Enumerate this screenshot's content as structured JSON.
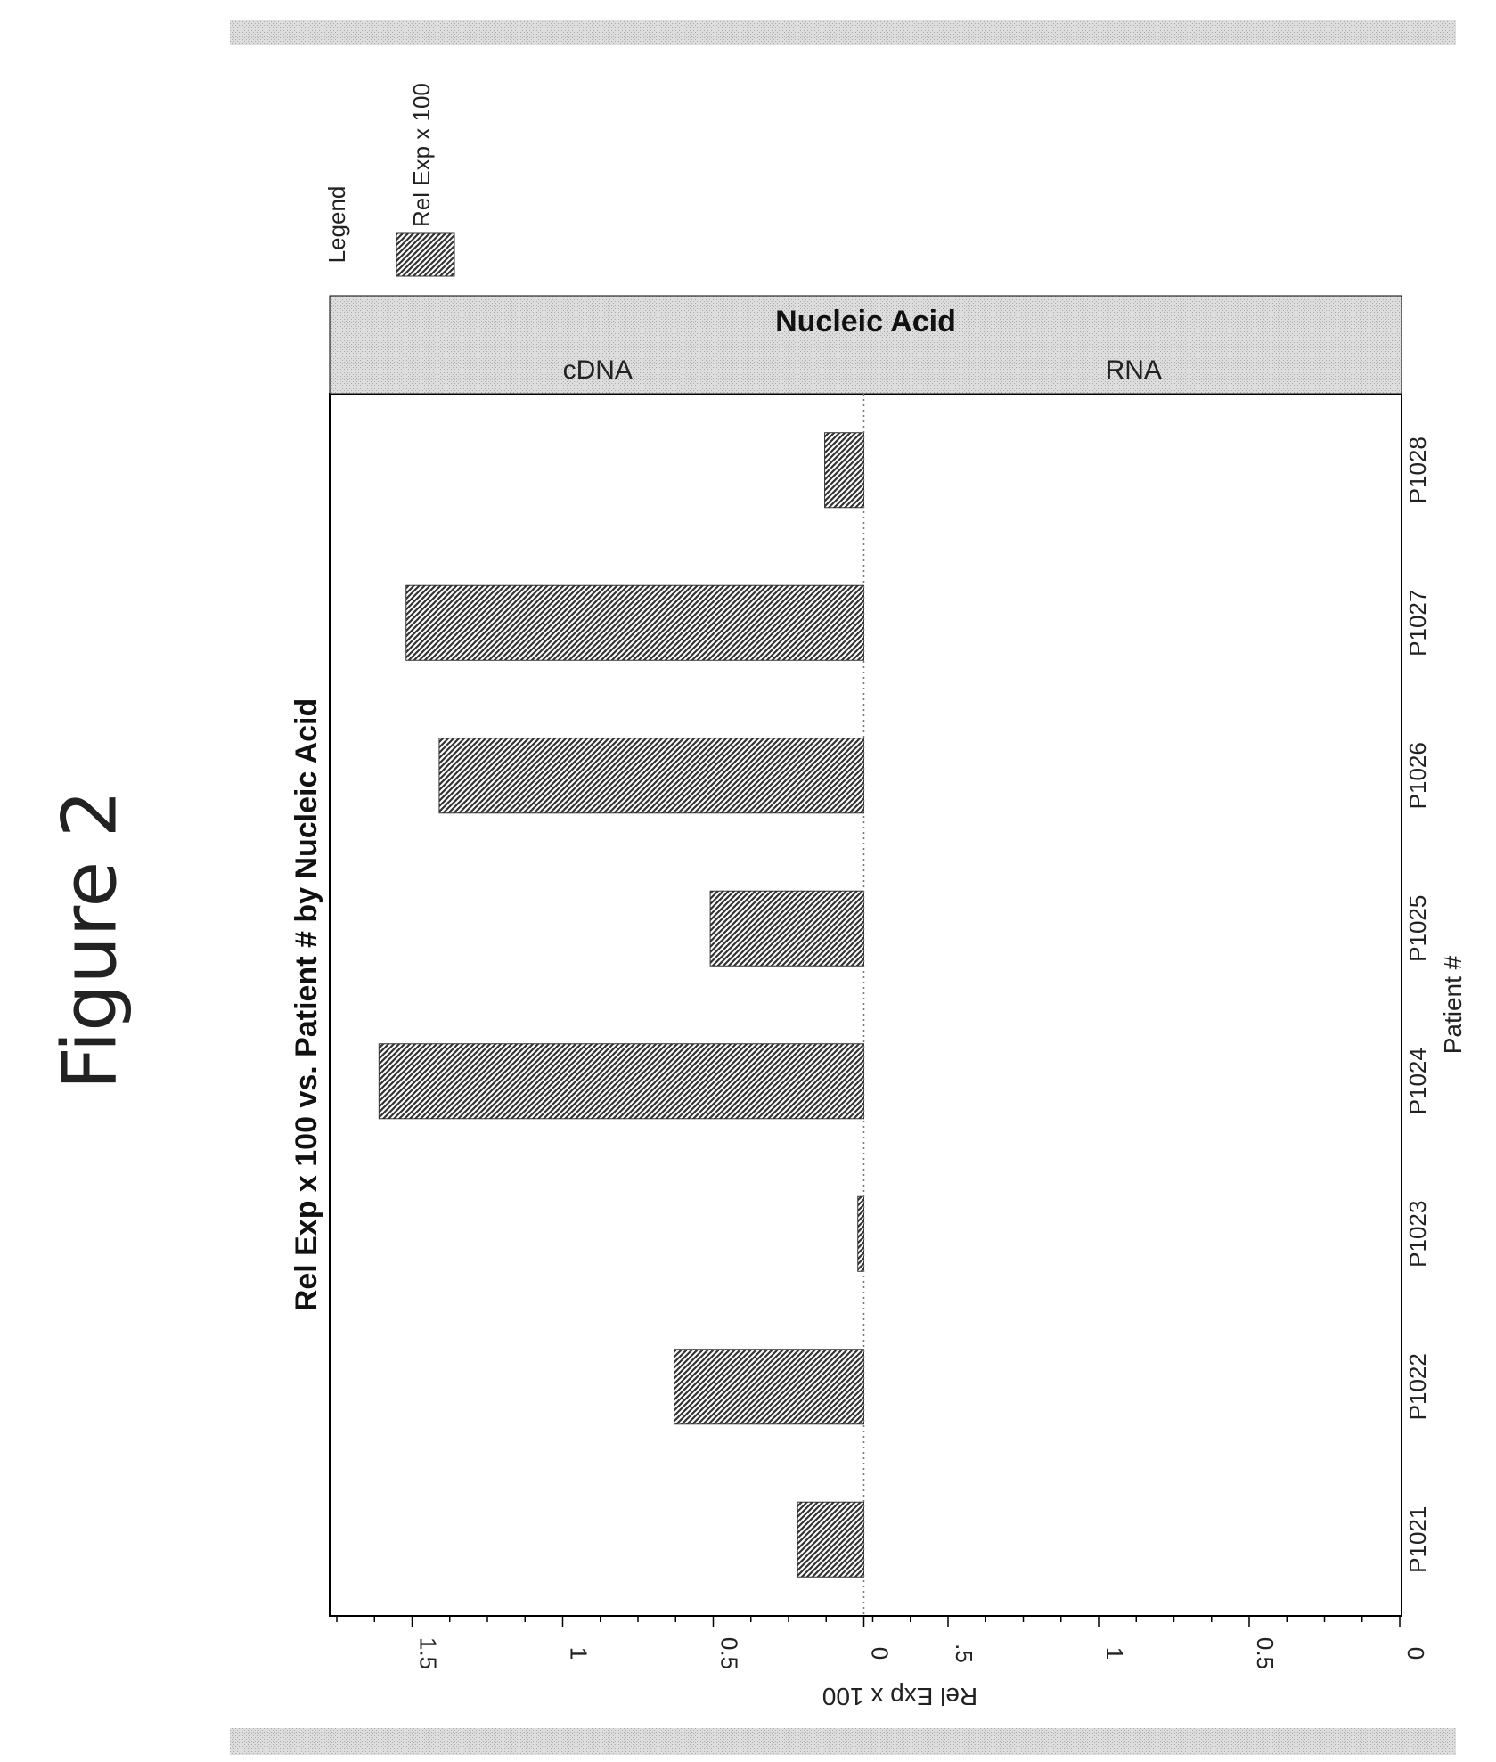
{
  "figure_title": "Figure 2",
  "chart_data": {
    "type": "bar",
    "orientation": "rotated",
    "title": "Rel Exp x 100 vs. Patient # by Nucleic Acid",
    "xlabel": "Patient #",
    "ylabel": "Rel Exp x 100",
    "categories": [
      "P1021",
      "P1022",
      "P1023",
      "P1024",
      "P1025",
      "P1026",
      "P1027",
      "P1028"
    ],
    "facet_title": "Nucleic Acid",
    "facets": [
      {
        "name": "cDNA",
        "values": [
          0.22,
          0.63,
          0.02,
          1.61,
          0.51,
          1.41,
          1.52,
          0.13
        ],
        "ylim": [
          0,
          1.75
        ],
        "ticks": [
          "0",
          "0.5",
          "1",
          "1.5"
        ]
      },
      {
        "name": "RNA",
        "values": [
          0,
          0,
          0,
          0,
          0,
          0,
          0,
          0
        ],
        "ylim": [
          0,
          1.75
        ],
        "ticks": [
          "0",
          "0.5",
          "1",
          ".5"
        ]
      }
    ],
    "legend": {
      "title": "Legend",
      "entries": [
        "Rel Exp x 100"
      ],
      "placement": "top-left"
    },
    "grid": false,
    "bar_pattern": "diagonal-hatch",
    "colors": {
      "bar": "#333333",
      "header": "#cccccc",
      "axis": "#000000"
    }
  }
}
